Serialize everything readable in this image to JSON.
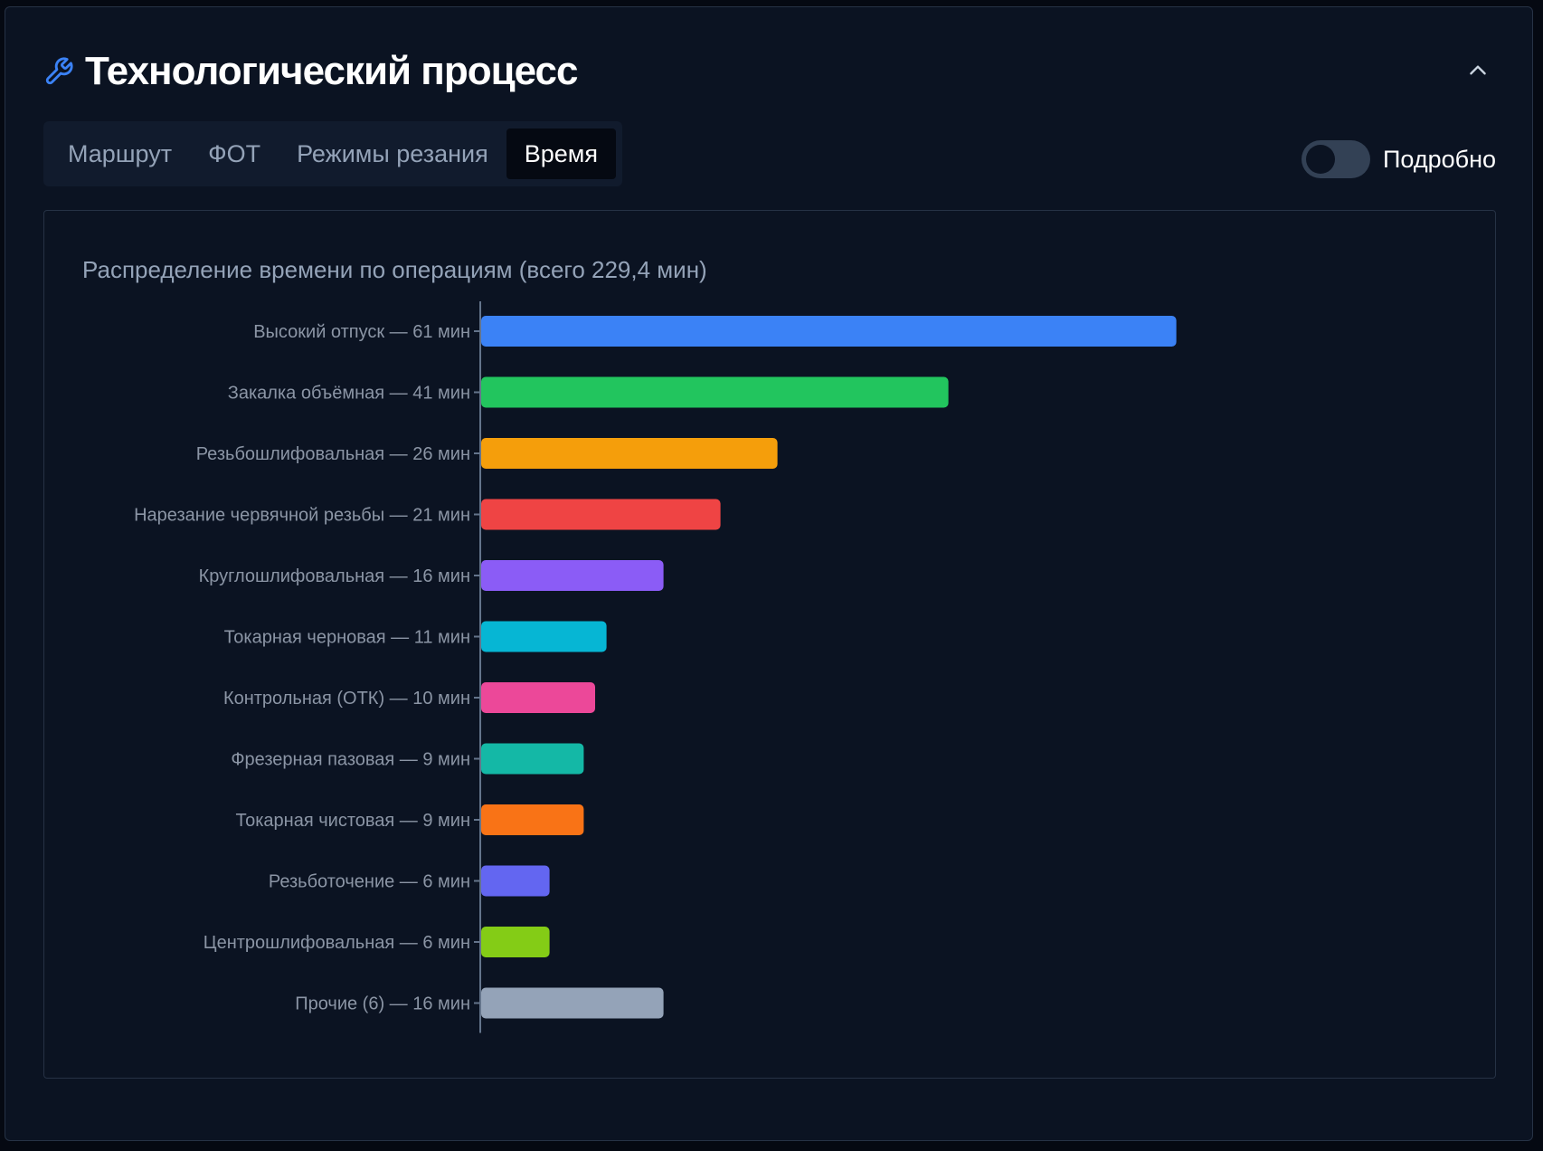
{
  "header": {
    "title": "Технологический процесс",
    "icon": "wrench-icon",
    "collapse_icon": "chevron-up-icon"
  },
  "tabs": [
    {
      "label": "Маршрут",
      "active": false
    },
    {
      "label": "ФОТ",
      "active": false
    },
    {
      "label": "Режимы резания",
      "active": false
    },
    {
      "label": "Время",
      "active": true
    }
  ],
  "toggle": {
    "label": "Подробно",
    "on": false
  },
  "colors": {
    "accent": "#3b82f6"
  },
  "chart_data": {
    "type": "bar",
    "orientation": "horizontal",
    "title": "Распределение времени по операциям (всего 229,4 мин)",
    "xlabel": "",
    "ylabel": "",
    "grid": false,
    "categories": [
      "Высокий отпуск — 61 мин",
      "Закалка объёмная — 41 мин",
      "Резьбошлифовальная — 26 мин",
      "Нарезание червячной резьбы — 21 мин",
      "Круглошлифовальная — 16 мин",
      "Токарная черновая — 11 мин",
      "Контрольная (ОТК) — 10 мин",
      "Фрезерная пазовая — 9 мин",
      "Токарная чистовая — 9 мин",
      "Резьботочение — 6 мин",
      "Центрошлифовальная — 6 мин",
      "Прочие (6) — 16 мин"
    ],
    "values": [
      61,
      41,
      26,
      21,
      16,
      11,
      10,
      9,
      9,
      6,
      6,
      16
    ],
    "colors": [
      "#3b82f6",
      "#22c55e",
      "#f59e0b",
      "#ef4444",
      "#8b5cf6",
      "#06b6d4",
      "#ec4899",
      "#14b8a6",
      "#f97316",
      "#6366f1",
      "#84cc16",
      "#94a3b8"
    ]
  }
}
